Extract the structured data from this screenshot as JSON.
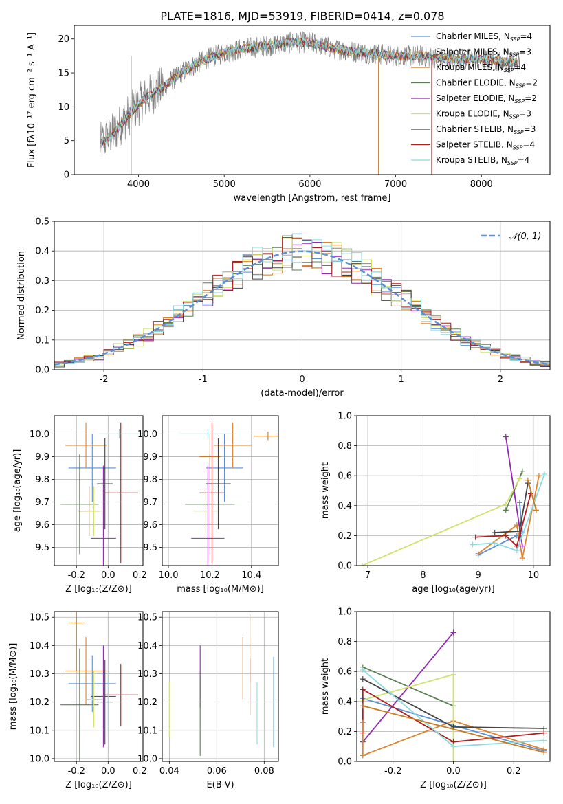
{
  "figure": {
    "title": "PLATE=1816, MJD=53919, FIBERID=0414, z=0.078"
  },
  "models": [
    {
      "name": "Chabrier MILES",
      "nssp": "4",
      "color": "#5b8fd6"
    },
    {
      "name": "Salpeter MILES",
      "nssp": "3",
      "color": "#e0822b"
    },
    {
      "name": "Kroupa MILES",
      "nssp": "4",
      "color": "#c77a1e"
    },
    {
      "name": "Chabrier ELODIE",
      "nssp": "2",
      "color": "#5a7f55"
    },
    {
      "name": "Salpeter ELODIE",
      "nssp": "2",
      "color": "#8f2ab0"
    },
    {
      "name": "Kroupa ELODIE",
      "nssp": "3",
      "color": "#cfe26a"
    },
    {
      "name": "Chabrier STELIB",
      "nssp": "3",
      "color": "#444444"
    },
    {
      "name": "Salpeter STELIB",
      "nssp": "4",
      "color": "#b01c1c"
    },
    {
      "name": "Kroupa STELIB",
      "nssp": "4",
      "color": "#8adbe0"
    }
  ],
  "chart_data": [
    {
      "id": "spectrum",
      "type": "line",
      "xlabel": "wavelength [Angstrom, rest frame]",
      "ylabel": "Flux [fλ10⁻¹⁷ erg cm⁻² s⁻¹ A⁻¹]",
      "xlim": [
        3250,
        8800
      ],
      "ylim": [
        0,
        22
      ],
      "xticks": [
        4000,
        5000,
        6000,
        7000,
        8000
      ],
      "yticks": [
        0,
        5,
        10,
        15,
        20
      ],
      "legend_loc": "right",
      "nssp_prefix": "N",
      "nssp_sub": "SSP",
      "continuum": {
        "x": [
          3500,
          3700,
          3900,
          4100,
          4300,
          4500,
          4700,
          5000,
          5200,
          5500,
          5800,
          6000,
          6300,
          6600,
          7000,
          7300,
          7600,
          8000,
          8400,
          8500
        ],
        "y": [
          4,
          6,
          9,
          11.5,
          13,
          15,
          16.5,
          18,
          18.5,
          19,
          19.5,
          19.5,
          18.5,
          18,
          17.5,
          17.5,
          17,
          17,
          16.5,
          16
        ]
      }
    },
    {
      "id": "residuals",
      "type": "step-histogram",
      "xlabel": "(data-model)/error",
      "ylabel": "Normed distribution",
      "xlim": [
        -2.5,
        2.5
      ],
      "ylim": [
        0,
        0.5
      ],
      "xticks": [
        -2,
        -1,
        0,
        1,
        2
      ],
      "yticks": [
        0.0,
        0.1,
        0.2,
        0.3,
        0.4,
        0.5
      ],
      "reference_curve": "𝒩(0, 1)",
      "reference_color": "#5b8fd6",
      "bin_width": 0.1
    },
    {
      "id": "age-vs-Z",
      "type": "errorbar",
      "xlabel": "Z [log₁₀(Z/Z⊙)]",
      "ylabel": "age  [log₁₀(age/yr)]",
      "xlim": [
        -0.34,
        0.22
      ],
      "ylim": [
        9.42,
        10.08
      ],
      "xticks": [
        -0.2,
        0.0,
        0.2
      ],
      "yticks": [
        9.5,
        9.6,
        9.7,
        9.8,
        9.9,
        10.0
      ],
      "points": [
        {
          "model": 0,
          "x": -0.1,
          "y": 9.85,
          "xerr": 0.15,
          "yerr": 0.15
        },
        {
          "model": 1,
          "x": -0.14,
          "y": 9.95,
          "xerr": 0.13,
          "yerr": 0.1
        },
        {
          "model": 2,
          "x": -0.12,
          "y": 9.66,
          "xerr": 0.07,
          "yerr": 0.11
        },
        {
          "model": 3,
          "x": -0.18,
          "y": 9.69,
          "xerr": 0.12,
          "yerr": 0.22
        },
        {
          "model": 4,
          "x": -0.03,
          "y": 9.54,
          "xerr": 0.08,
          "yerr": 0.32
        },
        {
          "model": 5,
          "x": -0.09,
          "y": 9.66,
          "xerr": 0.05,
          "yerr": 0.11
        },
        {
          "model": 6,
          "x": -0.02,
          "y": 9.78,
          "xerr": 0.05,
          "yerr": 0.2
        },
        {
          "model": 7,
          "x": 0.08,
          "y": 9.74,
          "xerr": 0.11,
          "yerr": 0.31
        },
        {
          "model": 8,
          "x": 0.07,
          "y": 10.0,
          "xerr": 0.13,
          "yerr": 0.02
        }
      ]
    },
    {
      "id": "age-vs-mass",
      "type": "errorbar",
      "xlabel": "mass [log₁₀(M/M⊙)]",
      "ylabel": "",
      "xlim": [
        9.97,
        10.53
      ],
      "ylim": [
        9.42,
        10.08
      ],
      "xticks": [
        10.0,
        10.2,
        10.4
      ],
      "yticks": [
        9.5,
        9.6,
        9.7,
        9.8,
        9.9,
        10.0
      ],
      "points": [
        {
          "model": 0,
          "x": 10.27,
          "y": 9.85,
          "xerr": 0.09,
          "yerr": 0.15
        },
        {
          "model": 1,
          "x": 10.31,
          "y": 9.95,
          "xerr": 0.09,
          "yerr": 0.1
        },
        {
          "model": 2,
          "x": 10.2,
          "y": 9.9,
          "xerr": 0.05,
          "yerr": 0.1
        },
        {
          "model": 3,
          "x": 10.2,
          "y": 9.69,
          "xerr": 0.12,
          "yerr": 0.22
        },
        {
          "model": 4,
          "x": 10.19,
          "y": 9.54,
          "xerr": 0.08,
          "yerr": 0.32
        },
        {
          "model": 5,
          "x": 10.18,
          "y": 9.66,
          "xerr": 0.06,
          "yerr": 0.11
        },
        {
          "model": 6,
          "x": 10.24,
          "y": 9.78,
          "xerr": 0.06,
          "yerr": 0.2
        },
        {
          "model": 7,
          "x": 10.21,
          "y": 9.74,
          "xerr": 0.06,
          "yerr": 0.31
        },
        {
          "model": 8,
          "x": 10.19,
          "y": 10.0,
          "xerr": 0.14,
          "yerr": 0.02
        },
        {
          "model": 2,
          "x": 10.48,
          "y": 9.99,
          "xerr": 0.07,
          "yerr": 0.02
        }
      ]
    },
    {
      "id": "weight-vs-age",
      "type": "line",
      "xlabel": "age  [log₁₀(age/yr)]",
      "ylabel": "mass weight",
      "xlim": [
        6.8,
        10.3
      ],
      "ylim": [
        0,
        1
      ],
      "xticks": [
        7,
        8,
        9,
        10
      ],
      "yticks": [
        0.0,
        0.2,
        0.4,
        0.6,
        0.8,
        1.0
      ],
      "series": [
        {
          "model": 0,
          "x": [
            9.0,
            9.7,
            9.8,
            9.75
          ],
          "y": [
            0.07,
            0.2,
            0.22,
            0.42
          ]
        },
        {
          "model": 1,
          "x": [
            9.0,
            9.7,
            9.8,
            10.1
          ],
          "y": [
            0.08,
            0.27,
            0.05,
            0.6
          ]
        },
        {
          "model": 3,
          "x": [
            9.5,
            9.8
          ],
          "y": [
            0.37,
            0.63
          ]
        },
        {
          "model": 4,
          "x": [
            9.5,
            9.8
          ],
          "y": [
            0.86,
            0.13
          ]
        },
        {
          "model": 5,
          "x": [
            6.9,
            9.5,
            9.75
          ],
          "y": [
            0.0,
            0.41,
            0.58
          ]
        },
        {
          "model": 6,
          "x": [
            9.3,
            9.75,
            9.9
          ],
          "y": [
            0.22,
            0.23,
            0.55
          ]
        },
        {
          "model": 7,
          "x": [
            8.95,
            9.5,
            9.7,
            9.95
          ],
          "y": [
            0.19,
            0.2,
            0.13,
            0.48
          ]
        },
        {
          "model": 8,
          "x": [
            8.9,
            9.3,
            9.7,
            10.2
          ],
          "y": [
            0.14,
            0.15,
            0.1,
            0.61
          ]
        },
        {
          "model": 2,
          "x": [
            9.9,
            10.05
          ],
          "y": [
            0.57,
            0.37
          ]
        }
      ]
    },
    {
      "id": "mass-vs-Z",
      "type": "errorbar",
      "xlabel": "Z [log₁₀(Z/Z⊙)]",
      "ylabel": "mass [log₁₀(M/M⊙)]",
      "xlim": [
        -0.34,
        0.22
      ],
      "ylim": [
        9.99,
        10.52
      ],
      "xticks": [
        -0.2,
        0.0,
        0.2
      ],
      "yticks": [
        10.0,
        10.1,
        10.2,
        10.3,
        10.4,
        10.5
      ],
      "points": [
        {
          "model": 0,
          "x": -0.1,
          "y": 10.265,
          "xerr": 0.15,
          "yerr": 0.1
        },
        {
          "model": 1,
          "x": -0.14,
          "y": 10.31,
          "xerr": 0.13,
          "yerr": 0.12
        },
        {
          "model": 3,
          "x": -0.18,
          "y": 10.19,
          "xerr": 0.12,
          "yerr": 0.2
        },
        {
          "model": 4,
          "x": -0.03,
          "y": 10.22,
          "xerr": 0.08,
          "yerr": 0.18
        },
        {
          "model": 5,
          "x": -0.09,
          "y": 10.21,
          "xerr": 0.05,
          "yerr": 0.1
        },
        {
          "model": 6,
          "x": -0.02,
          "y": 10.2,
          "xerr": 0.05,
          "yerr": 0.15
        },
        {
          "model": 7,
          "x": 0.08,
          "y": 10.225,
          "xerr": 0.11,
          "yerr": 0.11
        },
        {
          "model": 8,
          "x": 0.0,
          "y": 10.2,
          "xerr": 0.02,
          "yerr": 0.1
        },
        {
          "model": 2,
          "x": -0.2,
          "y": 10.48,
          "xerr": 0.05,
          "yerr": 0.17
        }
      ]
    },
    {
      "id": "mass-vs-ebv",
      "type": "errorbar",
      "xlabel": "E(B-V)",
      "ylabel": "",
      "xlim": [
        0.037,
        0.086
      ],
      "ylim": [
        9.99,
        10.52
      ],
      "xticks": [
        0.04,
        0.06,
        0.08
      ],
      "yticks": [
        10.0,
        10.1,
        10.2,
        10.3,
        10.4,
        10.5
      ],
      "points": [
        {
          "model": 5,
          "x": 0.04,
          "y": 10.175,
          "yerr": 0.1
        },
        {
          "model": 4,
          "x": 0.053,
          "y": 10.29,
          "yerr": 0.11
        },
        {
          "model": 3,
          "x": 0.053,
          "y": 10.15,
          "yerr": 0.14
        },
        {
          "model": 1,
          "x": 0.071,
          "y": 10.32,
          "yerr": 0.11
        },
        {
          "model": 2,
          "x": 0.074,
          "y": 10.39,
          "yerr": 0.12
        },
        {
          "model": 7,
          "x": 0.074,
          "y": 10.255,
          "yerr": 0.1
        },
        {
          "model": 8,
          "x": 0.077,
          "y": 10.16,
          "yerr": 0.11
        },
        {
          "model": 0,
          "x": 0.084,
          "y": 10.2,
          "yerr": 0.16
        }
      ]
    },
    {
      "id": "weight-vs-Z",
      "type": "line",
      "xlabel": "Z [log₁₀(Z/Z⊙)]",
      "ylabel": "mass weight",
      "xlim": [
        -0.32,
        0.32
      ],
      "ylim": [
        0,
        1
      ],
      "xticks": [
        -0.2,
        0.0,
        0.2
      ],
      "yticks": [
        0.0,
        0.2,
        0.4,
        0.6,
        0.8,
        1.0
      ],
      "series": [
        {
          "model": 0,
          "x": [
            -0.3,
            0.0,
            0.3
          ],
          "y": [
            0.42,
            0.24,
            0.07
          ]
        },
        {
          "model": 1,
          "x": [
            -0.3,
            0.0,
            0.3
          ],
          "y": [
            0.04,
            0.27,
            0.08
          ]
        },
        {
          "model": 3,
          "x": [
            -0.3,
            0.0
          ],
          "y": [
            0.63,
            0.37
          ]
        },
        {
          "model": 4,
          "x": [
            -0.3,
            0.0
          ],
          "y": [
            0.13,
            0.86
          ]
        },
        {
          "model": 5,
          "x": [
            -0.3,
            0.0,
            0.0
          ],
          "y": [
            0.41,
            0.58,
            0.0
          ]
        },
        {
          "model": 6,
          "x": [
            -0.3,
            0.0,
            0.3
          ],
          "y": [
            0.55,
            0.23,
            0.22
          ]
        },
        {
          "model": 7,
          "x": [
            -0.3,
            -0.3,
            0.0,
            0.3
          ],
          "y": [
            0.19,
            0.48,
            0.13,
            0.19
          ]
        },
        {
          "model": 8,
          "x": [
            -0.3,
            0.0,
            0.3
          ],
          "y": [
            0.61,
            0.1,
            0.14
          ]
        },
        {
          "model": 2,
          "x": [
            -0.3,
            0.3
          ],
          "y": [
            0.37,
            0.06
          ]
        },
        {
          "model": 1,
          "x": [
            -0.3,
            -0.3
          ],
          "y": [
            0.04,
            0.26
          ]
        }
      ]
    }
  ]
}
